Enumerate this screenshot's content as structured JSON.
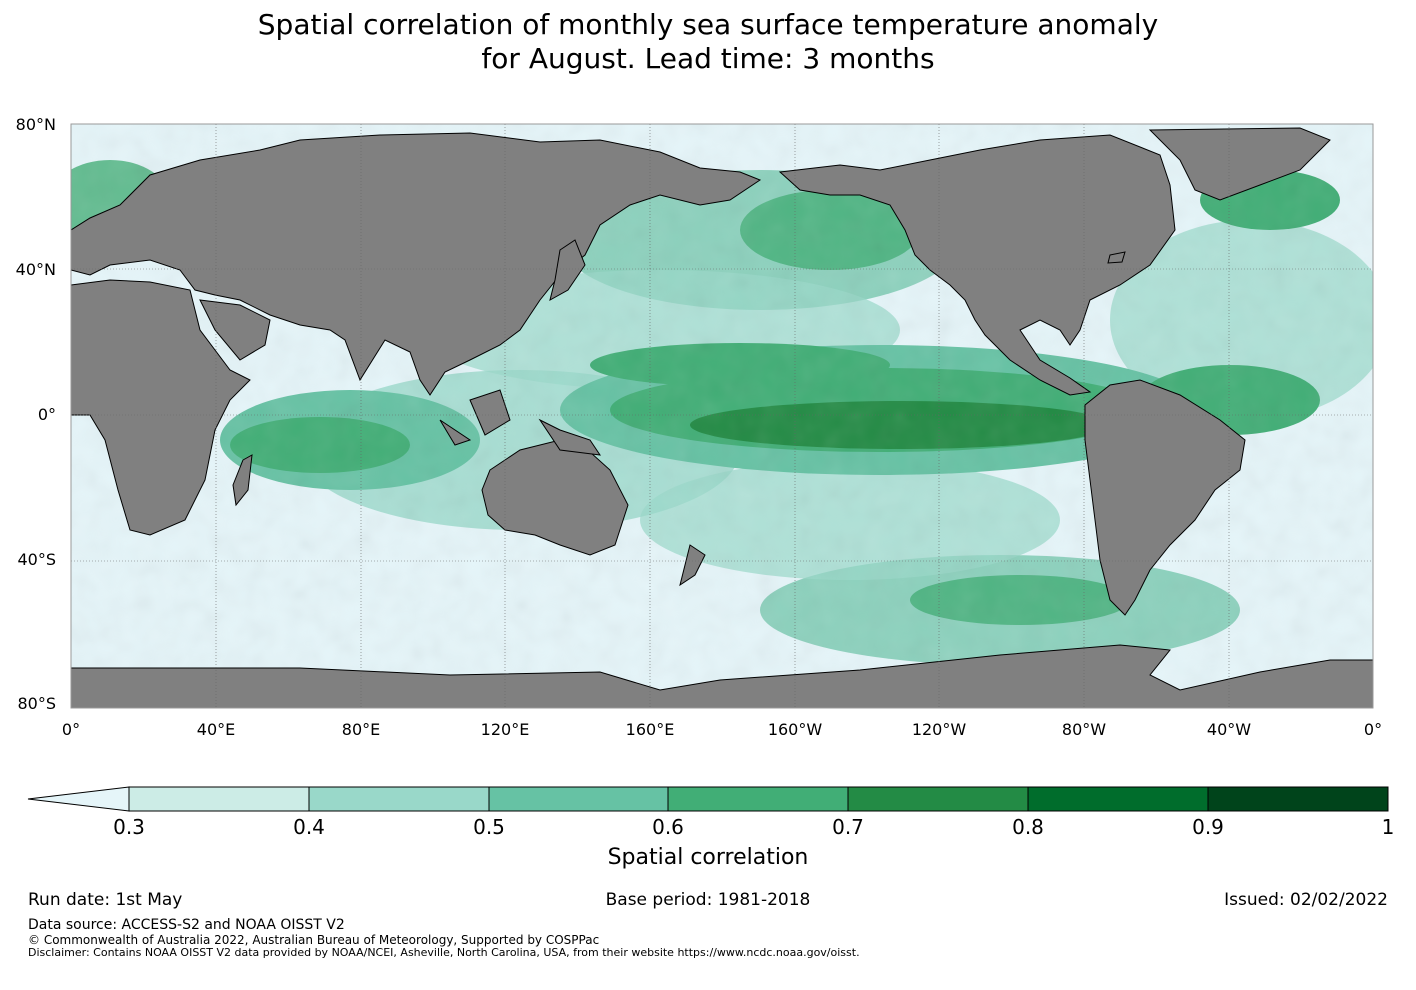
{
  "title_line1": "Spatial correlation of monthly sea surface temperature anomaly",
  "title_line2": "for August. Lead time: 3 months",
  "lat_labels": [
    "80°N",
    "40°N",
    "0°",
    "40°S",
    "80°S"
  ],
  "lon_labels": [
    "0°",
    "40°E",
    "80°E",
    "120°E",
    "160°E",
    "160°W",
    "120°W",
    "80°W",
    "40°W",
    "0°"
  ],
  "colorbar": {
    "label": "Spatial correlation",
    "ticks": [
      "0.3",
      "0.4",
      "0.5",
      "0.6",
      "0.7",
      "0.8",
      "0.9",
      "1"
    ],
    "under_color": "#e5f5f9",
    "colors": [
      "#ccece6",
      "#99d8c9",
      "#66c2a4",
      "#41ae76",
      "#238b45",
      "#006d2c",
      "#00441b"
    ]
  },
  "colors": {
    "land": "#808080",
    "ocean_low": "#e5f5f9"
  },
  "footer": {
    "run_date": "Run date: 1st May",
    "base_period": "Base period: 1981-2018",
    "issued": "Issued: 02/02/2022",
    "data_source": "Data source: ACCESS-S2 and NOAA OISST V2",
    "copyright": "© Commonwealth of Australia 2022, Australian Bureau of Meteorology, Supported by COSPPac",
    "disclaimer": "Disclaimer: Contains NOAA OISST V2 data provided by NOAA/NCEI, Asheville, North Carolina, USA, from their website https://www.ncdc.noaa.gov/oisst."
  }
}
